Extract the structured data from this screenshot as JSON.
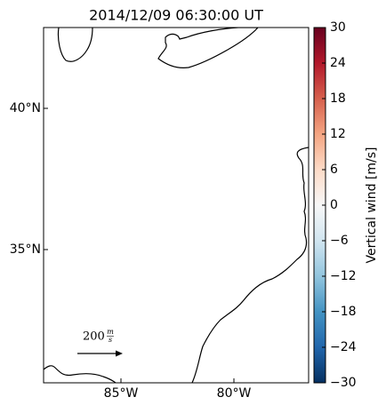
{
  "title": "2014/12/09 06:30:00 UT",
  "map": {
    "lat_labels": [
      {
        "value": 40,
        "label": "40°N"
      },
      {
        "value": 35,
        "label": "35°N"
      }
    ],
    "lon_labels": [
      {
        "value": -85,
        "label": "85°W"
      },
      {
        "value": -80,
        "label": "80°W"
      }
    ],
    "quiver_key": {
      "value": 200,
      "unit_numerator": "m",
      "unit_denominator": "s"
    }
  },
  "colorbar": {
    "label": "Vertical wind [m/s]",
    "lim": [
      -30,
      30
    ],
    "ticks": [
      {
        "value": -30,
        "label": "−30"
      },
      {
        "value": -24,
        "label": "−24"
      },
      {
        "value": -18,
        "label": "−18"
      },
      {
        "value": -12,
        "label": "−12"
      },
      {
        "value": -6,
        "label": "−6"
      },
      0,
      6,
      12,
      18,
      24,
      30
    ]
  }
}
